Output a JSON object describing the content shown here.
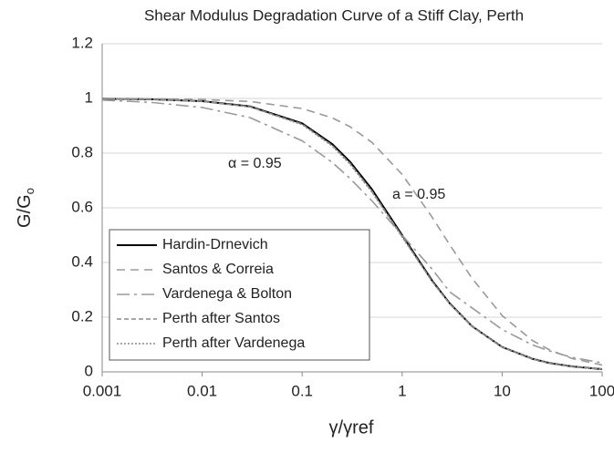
{
  "chart_data": {
    "type": "line",
    "title": "Shear Modulus Degradation Curve of a Stiff Clay, Perth",
    "x_label": "γ/γref",
    "y_label": "G/G",
    "y_label_subscript": "o",
    "x": [
      0.001,
      0.003,
      0.01,
      0.03,
      0.1,
      0.2,
      0.3,
      0.5,
      1,
      2,
      3,
      5,
      10,
      20,
      30,
      50,
      100
    ],
    "series": [
      {
        "name": "Hardin-Drnevich",
        "color": "#000000",
        "dash": "solid",
        "values": [
          0.999,
          0.997,
          0.99,
          0.971,
          0.909,
          0.833,
          0.769,
          0.667,
          0.5,
          0.333,
          0.25,
          0.167,
          0.091,
          0.048,
          0.032,
          0.02,
          0.01
        ]
      },
      {
        "name": "Santos & Correia",
        "color": "#9a9a9a",
        "dash": "dashed",
        "values": [
          1.0,
          0.999,
          0.996,
          0.989,
          0.963,
          0.929,
          0.897,
          0.839,
          0.722,
          0.565,
          0.464,
          0.342,
          0.206,
          0.115,
          0.08,
          0.049,
          0.025
        ]
      },
      {
        "name": "Vardenega & Bolton",
        "color": "#9a9a9a",
        "dash": "dashdot",
        "values": [
          0.994,
          0.986,
          0.967,
          0.93,
          0.845,
          0.766,
          0.708,
          0.625,
          0.5,
          0.375,
          0.292,
          0.234,
          0.155,
          0.099,
          0.076,
          0.053,
          0.033
        ]
      },
      {
        "name": "Perth after Santos",
        "color": "#8a8a8a",
        "dash": "shortdash",
        "values": [
          0.999,
          0.997,
          0.99,
          0.97,
          0.906,
          0.828,
          0.763,
          0.66,
          0.495,
          0.33,
          0.248,
          0.166,
          0.09,
          0.047,
          0.031,
          0.019,
          0.01
        ]
      },
      {
        "name": "Perth after Vardenega",
        "color": "#8a8a8a",
        "dash": "dotted",
        "values": [
          0.999,
          0.997,
          0.989,
          0.969,
          0.904,
          0.826,
          0.76,
          0.657,
          0.493,
          0.33,
          0.249,
          0.167,
          0.092,
          0.049,
          0.033,
          0.021,
          0.011
        ]
      }
    ],
    "annotations": [
      "α = 0.95",
      "a = 0.95"
    ],
    "xscale": "log",
    "xlim": [
      0.001,
      100
    ],
    "xticks": [
      0.001,
      0.01,
      0.1,
      1,
      10,
      100
    ],
    "ylim": [
      0,
      1.2
    ],
    "yticks": [
      0,
      0.2,
      0.4,
      0.6,
      0.8,
      1,
      1.2
    ],
    "grid": true,
    "legend": "lower left"
  }
}
